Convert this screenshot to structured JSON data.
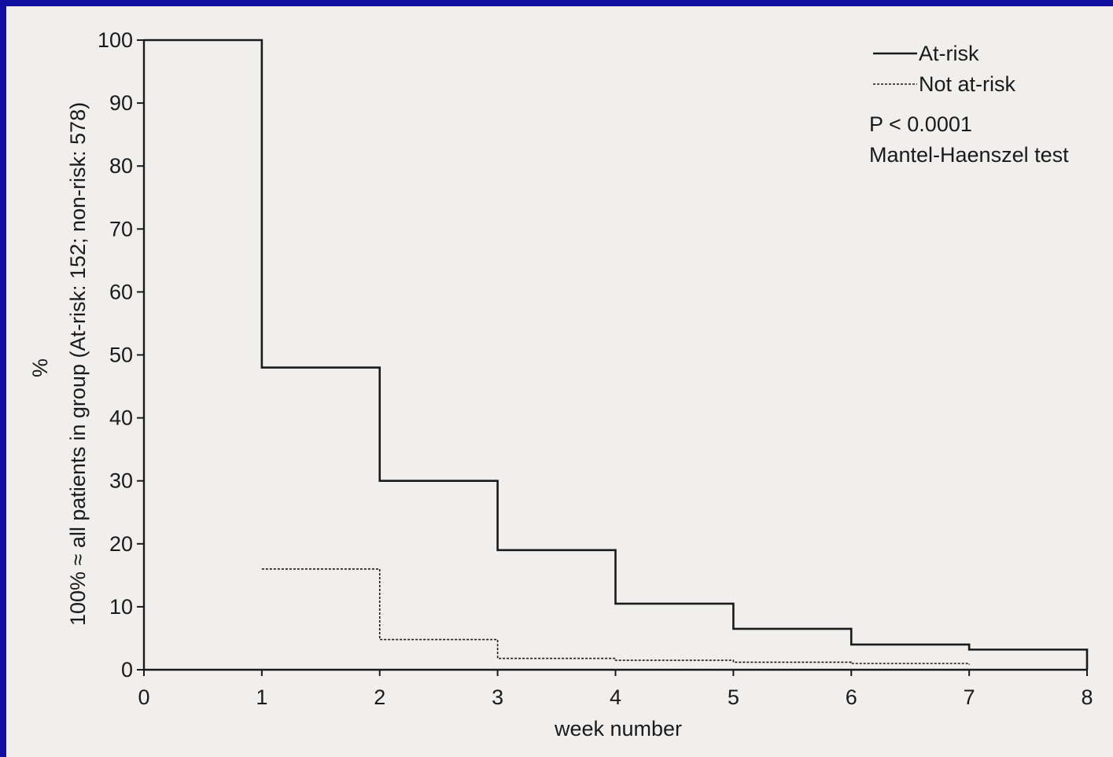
{
  "colors": {
    "frame": "#10109e",
    "background": "#f0efed",
    "ink": "#1a1a1a"
  },
  "chart_data": {
    "type": "line",
    "step": true,
    "title": "",
    "xlabel": "week number",
    "ylabel_lines": [
      "%",
      "100% ≈ all patients in group (At-risk: 152; non-risk: 578)"
    ],
    "xlim": [
      0,
      8
    ],
    "ylim": [
      0,
      100
    ],
    "xticks": [
      "0",
      "1",
      "2",
      "3",
      "4",
      "5",
      "6",
      "7",
      "8"
    ],
    "yticks": [
      "0",
      "10",
      "20",
      "30",
      "40",
      "50",
      "60",
      "70",
      "80",
      "90",
      "100"
    ],
    "grid": false,
    "legend_position": "top-right",
    "series": [
      {
        "name": "At-risk",
        "line_style": "solid",
        "x": [
          0,
          1,
          2,
          3,
          4,
          5,
          6,
          7,
          8
        ],
        "y": [
          100,
          48,
          30,
          19,
          10.5,
          6.5,
          4,
          3.2,
          0
        ]
      },
      {
        "name": "Not at-risk",
        "line_style": "dotted",
        "x": [
          1,
          2,
          3,
          4,
          5,
          6,
          7
        ],
        "y": [
          16,
          4.8,
          1.8,
          1.5,
          1.2,
          1.0,
          0.8
        ]
      }
    ],
    "annotations": [
      "P < 0.0001",
      "Mantel-Haenszel test"
    ]
  }
}
